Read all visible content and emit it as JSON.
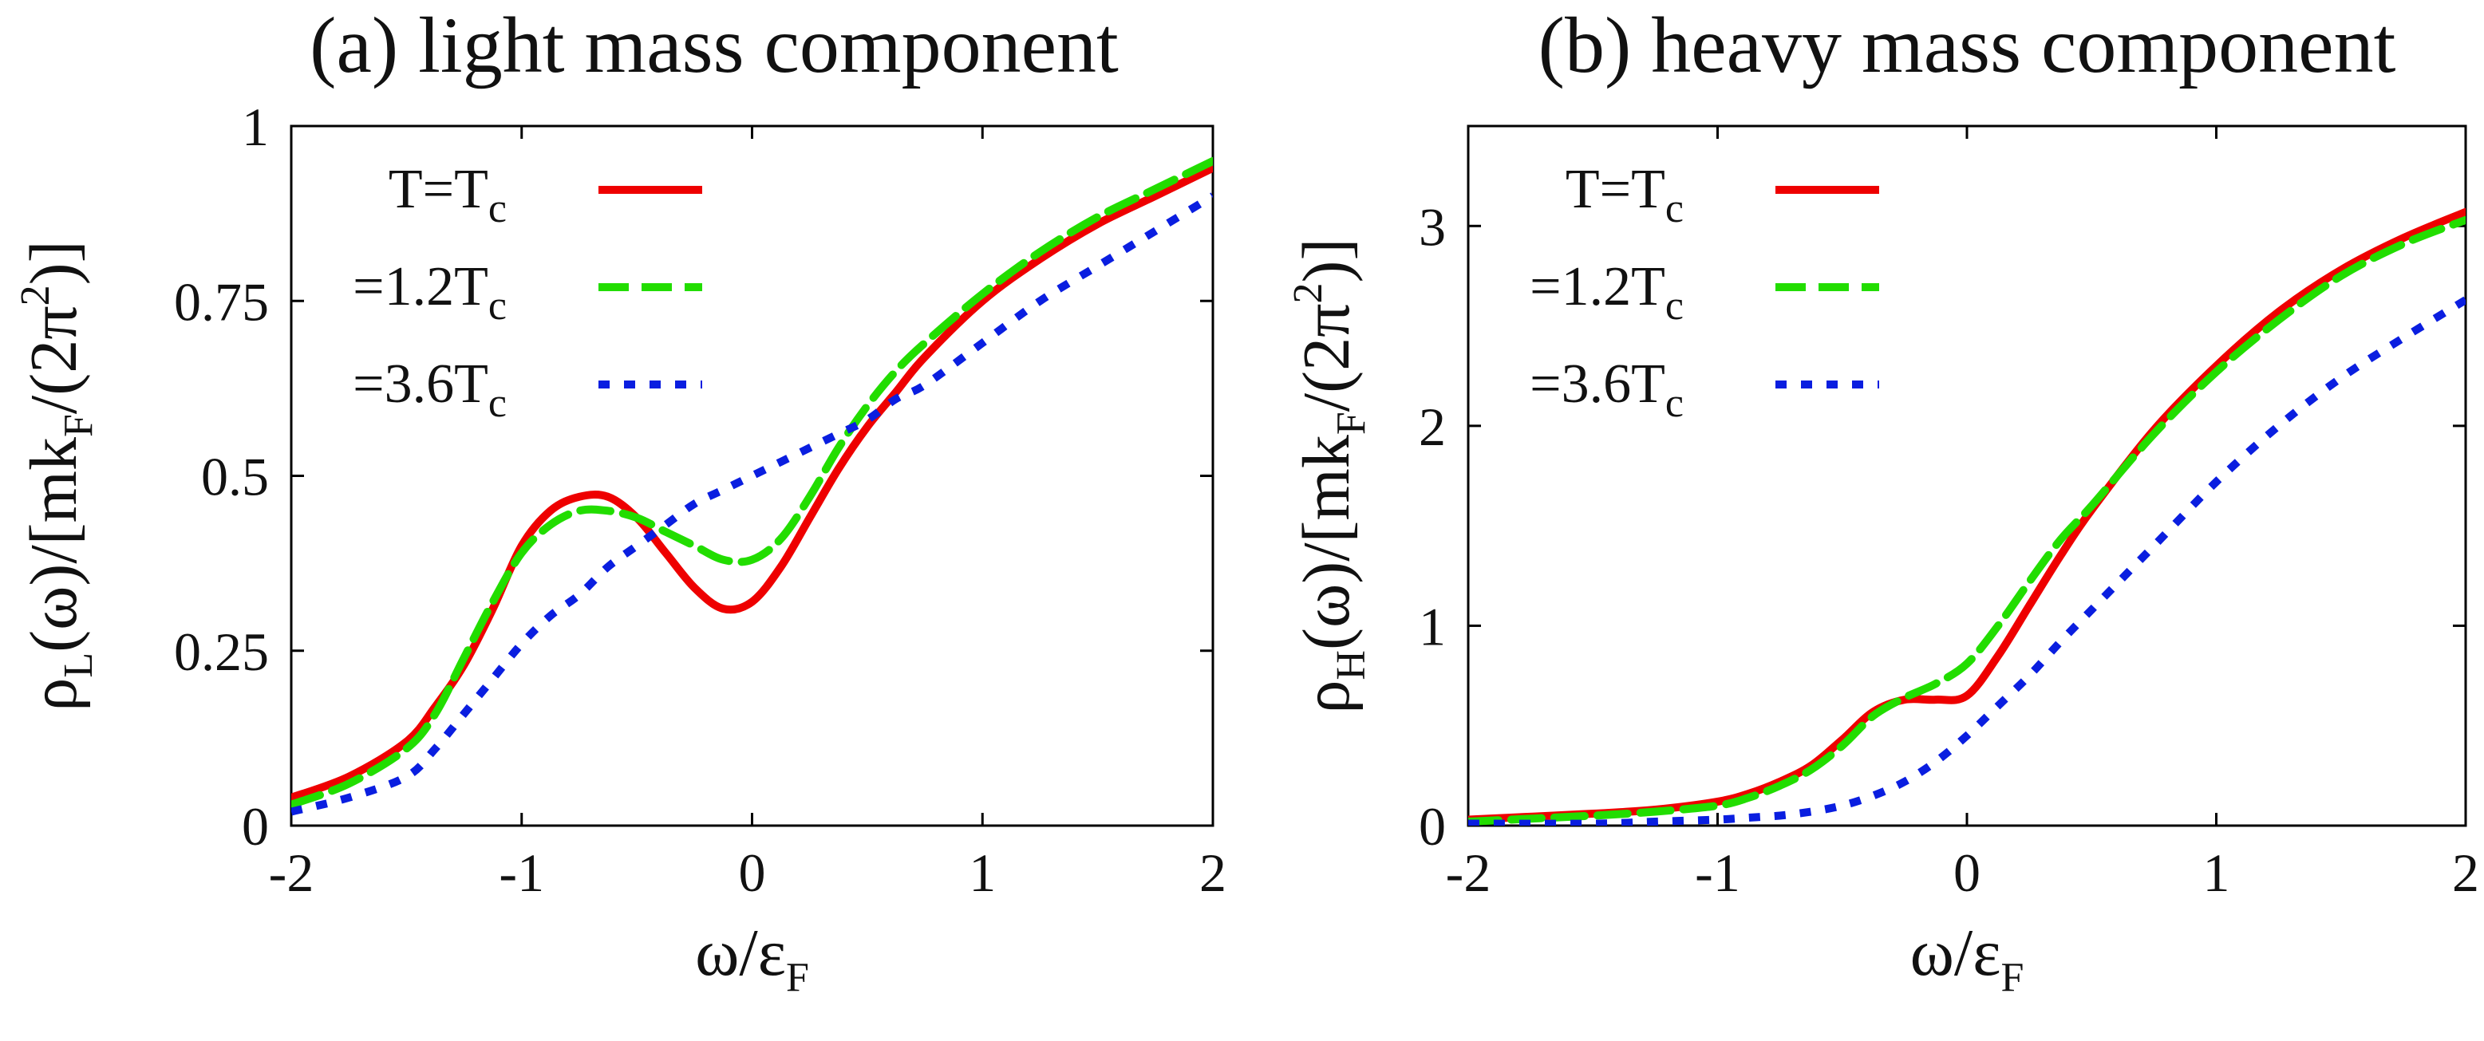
{
  "chart_data": [
    {
      "type": "line",
      "title": "(a) light mass component",
      "xlabel": {
        "main": "ω/ε",
        "sub": "F"
      },
      "ylabel": {
        "rho": "ρ",
        "rho_sub": "L",
        "mid": "(ω)/[mk",
        "k_sub": "F",
        "tail": "/(2π",
        "sup": "2",
        "end": ")]"
      },
      "xlim": [
        -2,
        2
      ],
      "ylim": [
        0,
        1
      ],
      "xticks": [
        -2,
        -1,
        0,
        1,
        2
      ],
      "xtick_labels": [
        "-2",
        "-1",
        "0",
        "1",
        "2"
      ],
      "yticks": [
        0,
        0.25,
        0.5,
        0.75,
        1
      ],
      "ytick_labels": [
        "0",
        "0.25",
        "0.5",
        "0.75",
        "1"
      ],
      "legend_position": "top-left",
      "series": [
        {
          "label": "T=T",
          "label_sub": "c",
          "color": "#ee0000",
          "dash": "solid",
          "x": [
            -2,
            -1.75,
            -1.5,
            -1.375,
            -1.25,
            -1.125,
            -1,
            -0.875,
            -0.75,
            -0.625,
            -0.5,
            -0.375,
            -0.25,
            -0.125,
            0,
            0.125,
            0.25,
            0.375,
            0.5,
            0.625,
            0.75,
            1,
            1.25,
            1.5,
            1.75,
            2
          ],
          "y": [
            0.04,
            0.07,
            0.12,
            0.17,
            0.23,
            0.31,
            0.4,
            0.45,
            0.47,
            0.47,
            0.44,
            0.39,
            0.34,
            0.31,
            0.32,
            0.37,
            0.44,
            0.51,
            0.57,
            0.62,
            0.67,
            0.75,
            0.81,
            0.86,
            0.9,
            0.94
          ]
        },
        {
          "label": "=1.2T",
          "label_sub": "c",
          "color": "#22dd00",
          "dash": "dashed",
          "x": [
            -2,
            -1.75,
            -1.5,
            -1.375,
            -1.25,
            -1.125,
            -1,
            -0.875,
            -0.75,
            -0.625,
            -0.5,
            -0.375,
            -0.25,
            -0.125,
            0,
            0.125,
            0.25,
            0.375,
            0.5,
            0.625,
            0.75,
            1,
            1.25,
            1.5,
            1.75,
            2
          ],
          "y": [
            0.03,
            0.06,
            0.11,
            0.16,
            0.24,
            0.32,
            0.39,
            0.43,
            0.45,
            0.45,
            0.44,
            0.42,
            0.4,
            0.38,
            0.38,
            0.41,
            0.47,
            0.54,
            0.6,
            0.65,
            0.69,
            0.76,
            0.82,
            0.87,
            0.91,
            0.95
          ]
        },
        {
          "label": "=3.6T",
          "label_sub": "c",
          "color": "#0a1ee0",
          "dash": "dotted",
          "x": [
            -2,
            -1.75,
            -1.5,
            -1.375,
            -1.25,
            -1.125,
            -1,
            -0.875,
            -0.75,
            -0.625,
            -0.5,
            -0.375,
            -0.25,
            -0.125,
            0,
            0.125,
            0.25,
            0.375,
            0.5,
            0.625,
            0.75,
            1,
            1.25,
            1.5,
            1.75,
            2
          ],
          "y": [
            0.02,
            0.04,
            0.07,
            0.11,
            0.16,
            0.21,
            0.26,
            0.3,
            0.33,
            0.37,
            0.4,
            0.43,
            0.46,
            0.48,
            0.5,
            0.52,
            0.54,
            0.56,
            0.58,
            0.61,
            0.63,
            0.69,
            0.75,
            0.8,
            0.85,
            0.9
          ]
        }
      ]
    },
    {
      "type": "line",
      "title": "(b) heavy mass component",
      "xlabel": {
        "main": "ω/ε",
        "sub": "F"
      },
      "ylabel": {
        "rho": "ρ",
        "rho_sub": "H",
        "mid": "(ω)/[mk",
        "k_sub": "F",
        "tail": "/(2π",
        "sup": "2",
        "end": ")]"
      },
      "xlim": [
        -2,
        2
      ],
      "ylim": [
        0,
        3.5
      ],
      "xticks": [
        -2,
        -1,
        0,
        1,
        2
      ],
      "xtick_labels": [
        "-2",
        "-1",
        "0",
        "1",
        "2"
      ],
      "yticks": [
        0,
        1,
        2,
        3
      ],
      "ytick_labels": [
        "0",
        "1",
        "2",
        "3"
      ],
      "legend_position": "top-left",
      "series": [
        {
          "label": "T=T",
          "label_sub": "c",
          "color": "#ee0000",
          "dash": "solid",
          "x": [
            -2,
            -1.5,
            -1.25,
            -1,
            -0.875,
            -0.75,
            -0.625,
            -0.5,
            -0.375,
            -0.25,
            -0.125,
            0,
            0.125,
            0.25,
            0.375,
            0.5,
            0.75,
            1,
            1.25,
            1.5,
            1.75,
            2
          ],
          "y": [
            0.03,
            0.06,
            0.08,
            0.12,
            0.16,
            0.22,
            0.3,
            0.43,
            0.57,
            0.63,
            0.63,
            0.65,
            0.85,
            1.1,
            1.35,
            1.58,
            1.98,
            2.3,
            2.57,
            2.78,
            2.94,
            3.07
          ]
        },
        {
          "label": "=1.2T",
          "label_sub": "c",
          "color": "#22dd00",
          "dash": "dashed",
          "x": [
            -2,
            -1.5,
            -1.25,
            -1,
            -0.875,
            -0.75,
            -0.625,
            -0.5,
            -0.375,
            -0.25,
            -0.125,
            0,
            0.125,
            0.25,
            0.375,
            0.5,
            0.75,
            1,
            1.25,
            1.5,
            1.75,
            2
          ],
          "y": [
            0.02,
            0.05,
            0.07,
            0.1,
            0.14,
            0.2,
            0.28,
            0.4,
            0.55,
            0.64,
            0.71,
            0.81,
            1.0,
            1.22,
            1.43,
            1.6,
            1.96,
            2.27,
            2.53,
            2.75,
            2.91,
            3.03
          ]
        },
        {
          "label": "=3.6T",
          "label_sub": "c",
          "color": "#0a1ee0",
          "dash": "dotted",
          "x": [
            -2,
            -1.5,
            -1.25,
            -1,
            -0.875,
            -0.75,
            -0.625,
            -0.5,
            -0.375,
            -0.25,
            -0.125,
            0,
            0.125,
            0.25,
            0.375,
            0.5,
            0.75,
            1,
            1.25,
            1.5,
            1.75,
            2
          ],
          "y": [
            0.01,
            0.01,
            0.02,
            0.03,
            0.04,
            0.05,
            0.07,
            0.1,
            0.15,
            0.22,
            0.32,
            0.45,
            0.6,
            0.75,
            0.92,
            1.08,
            1.4,
            1.72,
            2.0,
            2.24,
            2.44,
            2.63
          ]
        }
      ]
    }
  ]
}
